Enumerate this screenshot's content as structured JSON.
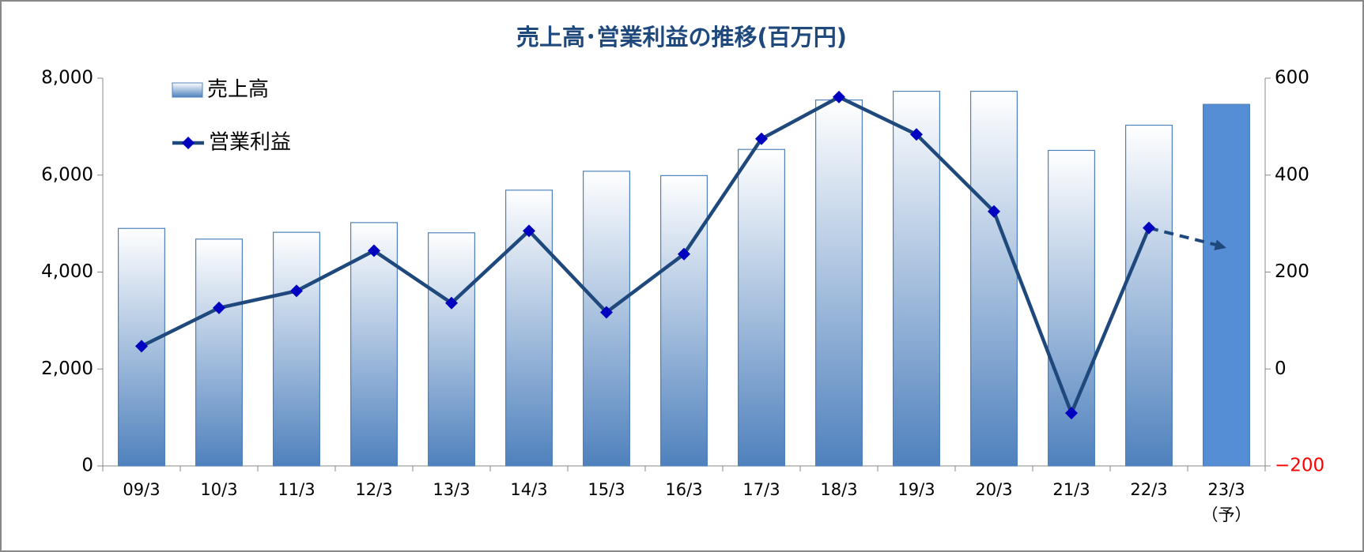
{
  "chart_data": {
    "type": "bar_line",
    "title": "売上高･営業利益の推移(百万円)",
    "categories": [
      "09/3",
      "10/3",
      "11/3",
      "12/3",
      "13/3",
      "14/3",
      "15/3",
      "16/3",
      "17/3",
      "18/3",
      "19/3",
      "20/3",
      "21/3",
      "22/3",
      "23/3"
    ],
    "forecast_label": "（予）",
    "series": [
      {
        "name": "売上高",
        "color": "#4f81bd",
        "forecast_color": "#558ed5",
        "values": [
          4900,
          4680,
          4820,
          5020,
          4810,
          5690,
          6080,
          5990,
          6530,
          7550,
          7730,
          7730,
          6510,
          7030,
          7460
        ]
      },
      {
        "name": "営業利益",
        "axis": "y2",
        "color": "#1f497d",
        "marker_color": "#0000c0",
        "values": [
          47,
          126,
          161,
          244,
          136,
          285,
          117,
          237,
          475,
          561,
          484,
          325,
          -91,
          291,
          250
        ]
      }
    ],
    "ylim": [
      0,
      8000
    ],
    "yticks": [
      0,
      {
        "value": 2000,
        "label": "2,000"
      },
      {
        "value": 4000,
        "label": "4,000"
      },
      {
        "value": 6000,
        "label": "6,000"
      },
      {
        "value": 8000,
        "label": "8,000"
      }
    ],
    "y2lim": [
      -200,
      600
    ],
    "y2ticks": [
      {
        "value": -200,
        "label": "−200"
      },
      0,
      200,
      400,
      600
    ],
    "negative_tick_color": "#ff0000",
    "legend": "upper-left"
  }
}
